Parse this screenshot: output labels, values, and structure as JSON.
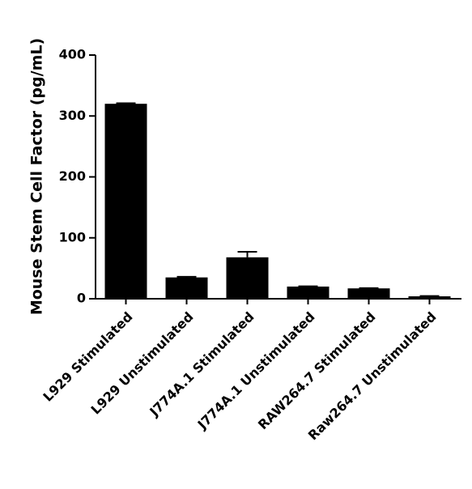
{
  "chart_data": {
    "type": "bar",
    "y_label": "Mouse Stem Cell Factor (pg/mL)",
    "categories": [
      "L929 Stimulated",
      "L929 Unstimulated",
      "J774A.1 Stimulated",
      "J774A.1 Unstimulated",
      "RAW264.7 Stimulated",
      "Raw264.7 Unstimulated"
    ],
    "values": [
      320,
      35,
      68,
      20,
      17,
      4
    ],
    "errors": [
      1,
      1,
      9,
      0.5,
      0.5,
      0.5
    ],
    "color": "#000000",
    "ylim": [
      0,
      400
    ],
    "yticks": [
      0,
      100,
      200,
      300,
      400
    ],
    "grid": false
  }
}
